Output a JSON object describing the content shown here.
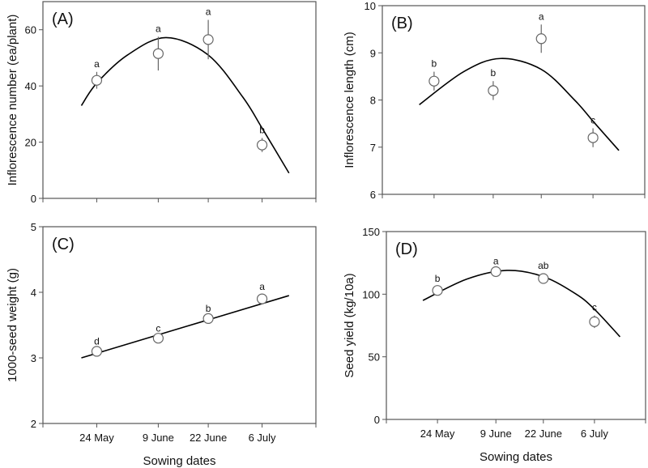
{
  "chart_data": [
    {
      "type": "scatter",
      "panel_label": "(A)",
      "ylabel": "Inflorescence number (ea/plant)",
      "xlabel": "",
      "ylim": [
        0,
        70
      ],
      "yticks": [
        "0",
        "20",
        "40",
        "60"
      ],
      "xticks": [],
      "points": [
        {
          "x": "24 May",
          "y": 42,
          "err": 3,
          "letter": "a"
        },
        {
          "x": "9 June",
          "y": 51.5,
          "err": 6,
          "letter": "a"
        },
        {
          "x": "22 June",
          "y": 56.5,
          "err": 7,
          "letter": "a"
        },
        {
          "x": "6 July",
          "y": 19,
          "err": 2.5,
          "letter": "b"
        }
      ],
      "fit": [
        [
          "20 May",
          33
        ],
        [
          "24 May",
          41
        ],
        [
          "1 June",
          51
        ],
        [
          "11 June",
          57.2
        ],
        [
          "22 June",
          51
        ],
        [
          "1 July",
          36
        ],
        [
          "6 July",
          25
        ],
        [
          "13 July",
          9
        ]
      ]
    },
    {
      "type": "scatter",
      "panel_label": "(B)",
      "ylabel": "Inflorescence length (cm)",
      "xlabel": "",
      "ylim": [
        6,
        10
      ],
      "yticks": [
        "6",
        "7",
        "8",
        "9",
        "10"
      ],
      "xticks": [],
      "points": [
        {
          "x": "24 May",
          "y": 8.4,
          "err": 0.2,
          "letter": "b"
        },
        {
          "x": "9 June",
          "y": 8.2,
          "err": 0.2,
          "letter": "b"
        },
        {
          "x": "22 June",
          "y": 9.3,
          "err": 0.3,
          "letter": "a"
        },
        {
          "x": "6 July",
          "y": 7.2,
          "err": 0.2,
          "letter": "c"
        }
      ],
      "fit": [
        [
          "20 May",
          7.9
        ],
        [
          "1 June",
          8.6
        ],
        [
          "11 June",
          8.88
        ],
        [
          "22 June",
          8.65
        ],
        [
          "1 July",
          8.0
        ],
        [
          "6 July",
          7.55
        ],
        [
          "13 July",
          6.93
        ]
      ]
    },
    {
      "type": "scatter",
      "panel_label": "(C)",
      "ylabel": "1000-seed weight (g)",
      "xlabel": "Sowing dates",
      "ylim": [
        2,
        5
      ],
      "yticks": [
        "2",
        "3",
        "4",
        "5"
      ],
      "xticks": [
        "24 May",
        "9 June",
        "22 June",
        "6 July"
      ],
      "points": [
        {
          "x": "24 May",
          "y": 3.1,
          "err": 0.03,
          "letter": "d"
        },
        {
          "x": "9 June",
          "y": 3.3,
          "err": 0.03,
          "letter": "c"
        },
        {
          "x": "22 June",
          "y": 3.6,
          "err": 0.03,
          "letter": "b"
        },
        {
          "x": "6 July",
          "y": 3.9,
          "err": 0.06,
          "letter": "a"
        }
      ],
      "fit": [
        [
          "20 May",
          3.0
        ],
        [
          "13 July",
          3.95
        ]
      ]
    },
    {
      "type": "scatter",
      "panel_label": "(D)",
      "ylabel": "Seed yield (kg/10a)",
      "xlabel": "Sowing dates",
      "ylim": [
        0,
        150
      ],
      "yticks": [
        "0",
        "50",
        "100",
        "150"
      ],
      "xticks": [
        "24 May",
        "9 June",
        "22 June",
        "6 July"
      ],
      "points": [
        {
          "x": "24 May",
          "y": 103,
          "err": 3,
          "letter": "b"
        },
        {
          "x": "9 June",
          "y": 118,
          "err": 2,
          "letter": "a"
        },
        {
          "x": "22 June",
          "y": 112.5,
          "err": 4,
          "letter": "ab"
        },
        {
          "x": "6 July",
          "y": 78,
          "err": 5,
          "letter": "c"
        }
      ],
      "fit": [
        [
          "20 May",
          95
        ],
        [
          "1 June",
          112
        ],
        [
          "12 June",
          119
        ],
        [
          "22 June",
          114
        ],
        [
          "1 July",
          100
        ],
        [
          "6 July",
          88
        ],
        [
          "13 July",
          66
        ]
      ]
    }
  ]
}
